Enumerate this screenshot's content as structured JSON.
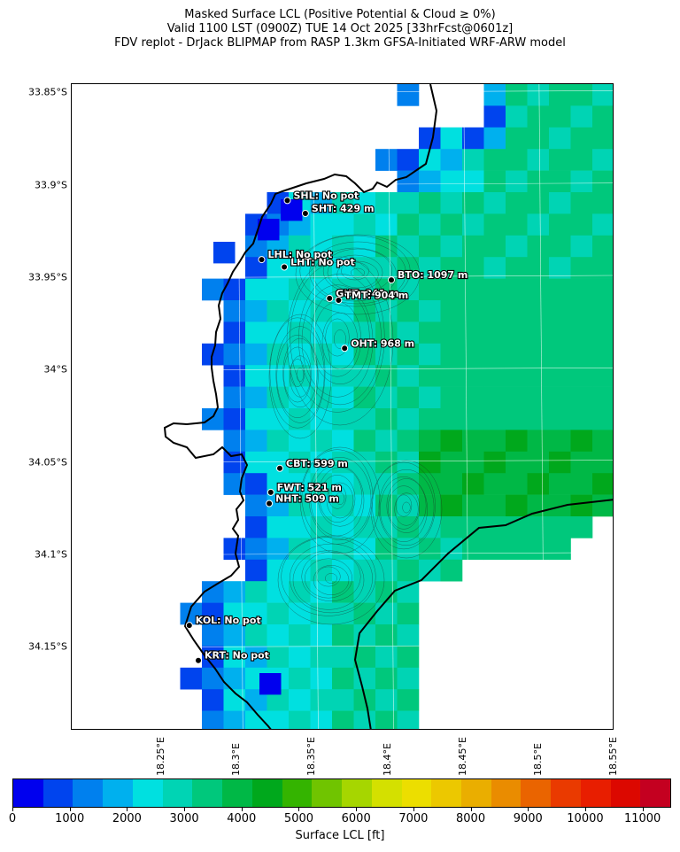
{
  "title": {
    "line1": "Masked Surface LCL (Positive Potential & Cloud ≥ 0%)",
    "line2": "Valid 1100 LST (0900Z) TUE 14 Oct 2025 [33hrFcst@0601z]",
    "line3": "FDV replot - DrJack BLIPMAP from RASP 1.3km GFSA-Initiated WRF-ARW model"
  },
  "map": {
    "lat_range": [
      -34.195,
      -33.845
    ],
    "lon_range": [
      18.19,
      18.55
    ],
    "lat_ticks": [
      {
        "value": -33.85,
        "label": "33.85°S"
      },
      {
        "value": -33.9,
        "label": "33.9°S"
      },
      {
        "value": -33.95,
        "label": "33.95°S"
      },
      {
        "value": -34.0,
        "label": "34°S"
      },
      {
        "value": -34.05,
        "label": "34.05°S"
      },
      {
        "value": -34.1,
        "label": "34.1°S"
      },
      {
        "value": -34.15,
        "label": "34.15°S"
      }
    ],
    "lon_ticks": [
      {
        "value": 18.25,
        "label": "18.25°E"
      },
      {
        "value": 18.3,
        "label": "18.3°E"
      },
      {
        "value": 18.35,
        "label": "18.35°E"
      },
      {
        "value": 18.4,
        "label": "18.4°E"
      },
      {
        "value": 18.45,
        "label": "18.45°E"
      },
      {
        "value": 18.5,
        "label": "18.5°E"
      },
      {
        "value": 18.55,
        "label": "18.55°E"
      }
    ],
    "stations": [
      {
        "code": "SHL",
        "label": "SHL: No pot",
        "lat": -33.908,
        "lon": 18.333
      },
      {
        "code": "SHT",
        "label": "SHT: 429 m",
        "lat": -33.915,
        "lon": 18.345
      },
      {
        "code": "LHT",
        "label": "LHT: No pot",
        "lat": -33.944,
        "lon": 18.331
      },
      {
        "code": "LHL",
        "label": "LHL: No pot",
        "lat": -33.94,
        "lon": 18.316
      },
      {
        "code": "BTO",
        "label": "BTO: 1097 m",
        "lat": -33.951,
        "lon": 18.402
      },
      {
        "code": "GUT",
        "label": "GUT: 841 m",
        "lat": -33.961,
        "lon": 18.361
      },
      {
        "code": "TMT",
        "label": "TMT: 904 m",
        "lat": -33.962,
        "lon": 18.367
      },
      {
        "code": "OHT",
        "label": "OHT: 968 m",
        "lat": -33.988,
        "lon": 18.371
      },
      {
        "code": "CBT",
        "label": "CBT: 599 m",
        "lat": -34.053,
        "lon": 18.328
      },
      {
        "code": "FWT",
        "label": "FWT: 521 m",
        "lat": -34.066,
        "lon": 18.322
      },
      {
        "code": "NHT",
        "label": "NHT: 509 m",
        "lat": -34.072,
        "lon": 18.321
      },
      {
        "code": "KOL",
        "label": "KOL: No pot",
        "lat": -34.138,
        "lon": 18.268
      },
      {
        "code": "KRT",
        "label": "KRT: No pot",
        "lat": -34.157,
        "lon": 18.274
      }
    ]
  },
  "colorbar": {
    "label": "Surface LCL [ft]",
    "ticks": [
      "0",
      "1000",
      "2000",
      "3000",
      "4000",
      "5000",
      "6000",
      "7000",
      "8000",
      "9000",
      "10000",
      "11000"
    ],
    "range": [
      0,
      11500
    ],
    "colors": [
      "#0000ee",
      "#0044ee",
      "#0080ee",
      "#00b0ee",
      "#00e0e0",
      "#00d4b4",
      "#00c87c",
      "#00b846",
      "#00a81c",
      "#34b400",
      "#70c400",
      "#a6d600",
      "#d4e000",
      "#ecde00",
      "#ecc800",
      "#eaae00",
      "#ea8c00",
      "#ea6400",
      "#ea3a00",
      "#e81e00",
      "#dc0800",
      "#c40020"
    ]
  }
}
